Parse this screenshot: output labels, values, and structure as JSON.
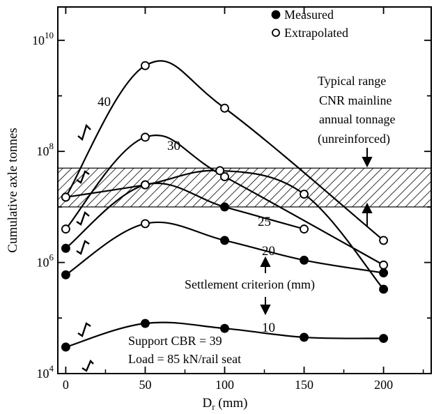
{
  "chart_data": {
    "type": "scatter",
    "xlabel_base": "D",
    "xlabel_sub": "r",
    "xlabel_rest": " (mm)",
    "ylabel": "Cumulative axle tonnes",
    "xlim": [
      -5,
      230
    ],
    "x_ticks": [
      0,
      50,
      100,
      150,
      200
    ],
    "x_tick_labels": [
      "0",
      "50",
      "100",
      "150",
      "200"
    ],
    "y_scale": "log",
    "ylim_exp": [
      4,
      10.6
    ],
    "y_ticks": [
      {
        "exp": 4,
        "base": "10",
        "power": "4"
      },
      {
        "exp": 6,
        "base": "10",
        "power": "6"
      },
      {
        "exp": 8,
        "base": "10",
        "power": "8"
      },
      {
        "exp": 10,
        "base": "10",
        "power": "10"
      }
    ],
    "legend": {
      "placement": "top-center",
      "items": [
        {
          "marker": "filled",
          "label": "Measured"
        },
        {
          "marker": "open",
          "label": "Extrapolated"
        }
      ]
    },
    "series": [
      {
        "name": "40",
        "points": [
          {
            "x": 0,
            "y": 15000000,
            "marker": "open"
          },
          {
            "x": 50,
            "y": 3500000000,
            "marker": "open"
          },
          {
            "x": 100,
            "y": 600000000,
            "marker": "open"
          },
          {
            "x": 200,
            "y": 2500000,
            "marker": "open"
          }
        ]
      },
      {
        "name": "30",
        "points": [
          {
            "x": 0,
            "y": 4000000,
            "marker": "open"
          },
          {
            "x": 50,
            "y": 180000000,
            "marker": "open"
          },
          {
            "x": 100,
            "y": 35000000,
            "marker": "open"
          },
          {
            "x": 200,
            "y": 900000,
            "marker": "open"
          }
        ]
      },
      {
        "name": "25",
        "points": [
          {
            "x": 0,
            "y": 1800000,
            "marker": "filled"
          },
          {
            "x": 50,
            "y": 25000000,
            "marker": "open"
          },
          {
            "x": 100,
            "y": 10000000,
            "marker": "filled"
          },
          {
            "x": 150,
            "y": 4000000,
            "marker": "open"
          }
        ]
      },
      {
        "name": "20",
        "points": [
          {
            "x": 0,
            "y": 600000,
            "marker": "filled"
          },
          {
            "x": 50,
            "y": 5000000,
            "marker": "open"
          },
          {
            "x": 100,
            "y": 2500000,
            "marker": "filled"
          },
          {
            "x": 150,
            "y": 1100000,
            "marker": "filled"
          },
          {
            "x": 200,
            "y": 650000,
            "marker": "filled"
          }
        ]
      },
      {
        "name": "10",
        "points": [
          {
            "x": 0,
            "y": 30000,
            "marker": "filled"
          },
          {
            "x": 50,
            "y": 80000,
            "marker": "filled"
          },
          {
            "x": 100,
            "y": 65000,
            "marker": "filled"
          },
          {
            "x": 150,
            "y": 45000,
            "marker": "filled"
          },
          {
            "x": 200,
            "y": 43000,
            "marker": "filled"
          }
        ]
      },
      {
        "name": "",
        "points": [
          {
            "x": 0,
            "y": 15000000,
            "marker": "open"
          },
          {
            "x": 50,
            "y": 25000000,
            "marker": "open"
          },
          {
            "x": 97,
            "y": 45000000,
            "marker": "open"
          },
          {
            "x": 150,
            "y": 17000000,
            "marker": "open"
          },
          {
            "x": 200,
            "y": 330000,
            "marker": "filled"
          }
        ]
      }
    ],
    "shaded_band": {
      "y_low": 10000000,
      "y_high": 50000000,
      "label": ""
    },
    "annotations": [
      {
        "id": "typical-range",
        "lines": [
          "Typical range",
          "CNR mainline",
          "annual tonnage",
          "(unreinforced)"
        ]
      },
      {
        "id": "settlement",
        "text": "Settlement criterion (mm)"
      },
      {
        "id": "support",
        "lines": [
          "Support CBR = 39",
          "Load = 85 kN/rail seat"
        ]
      }
    ]
  }
}
